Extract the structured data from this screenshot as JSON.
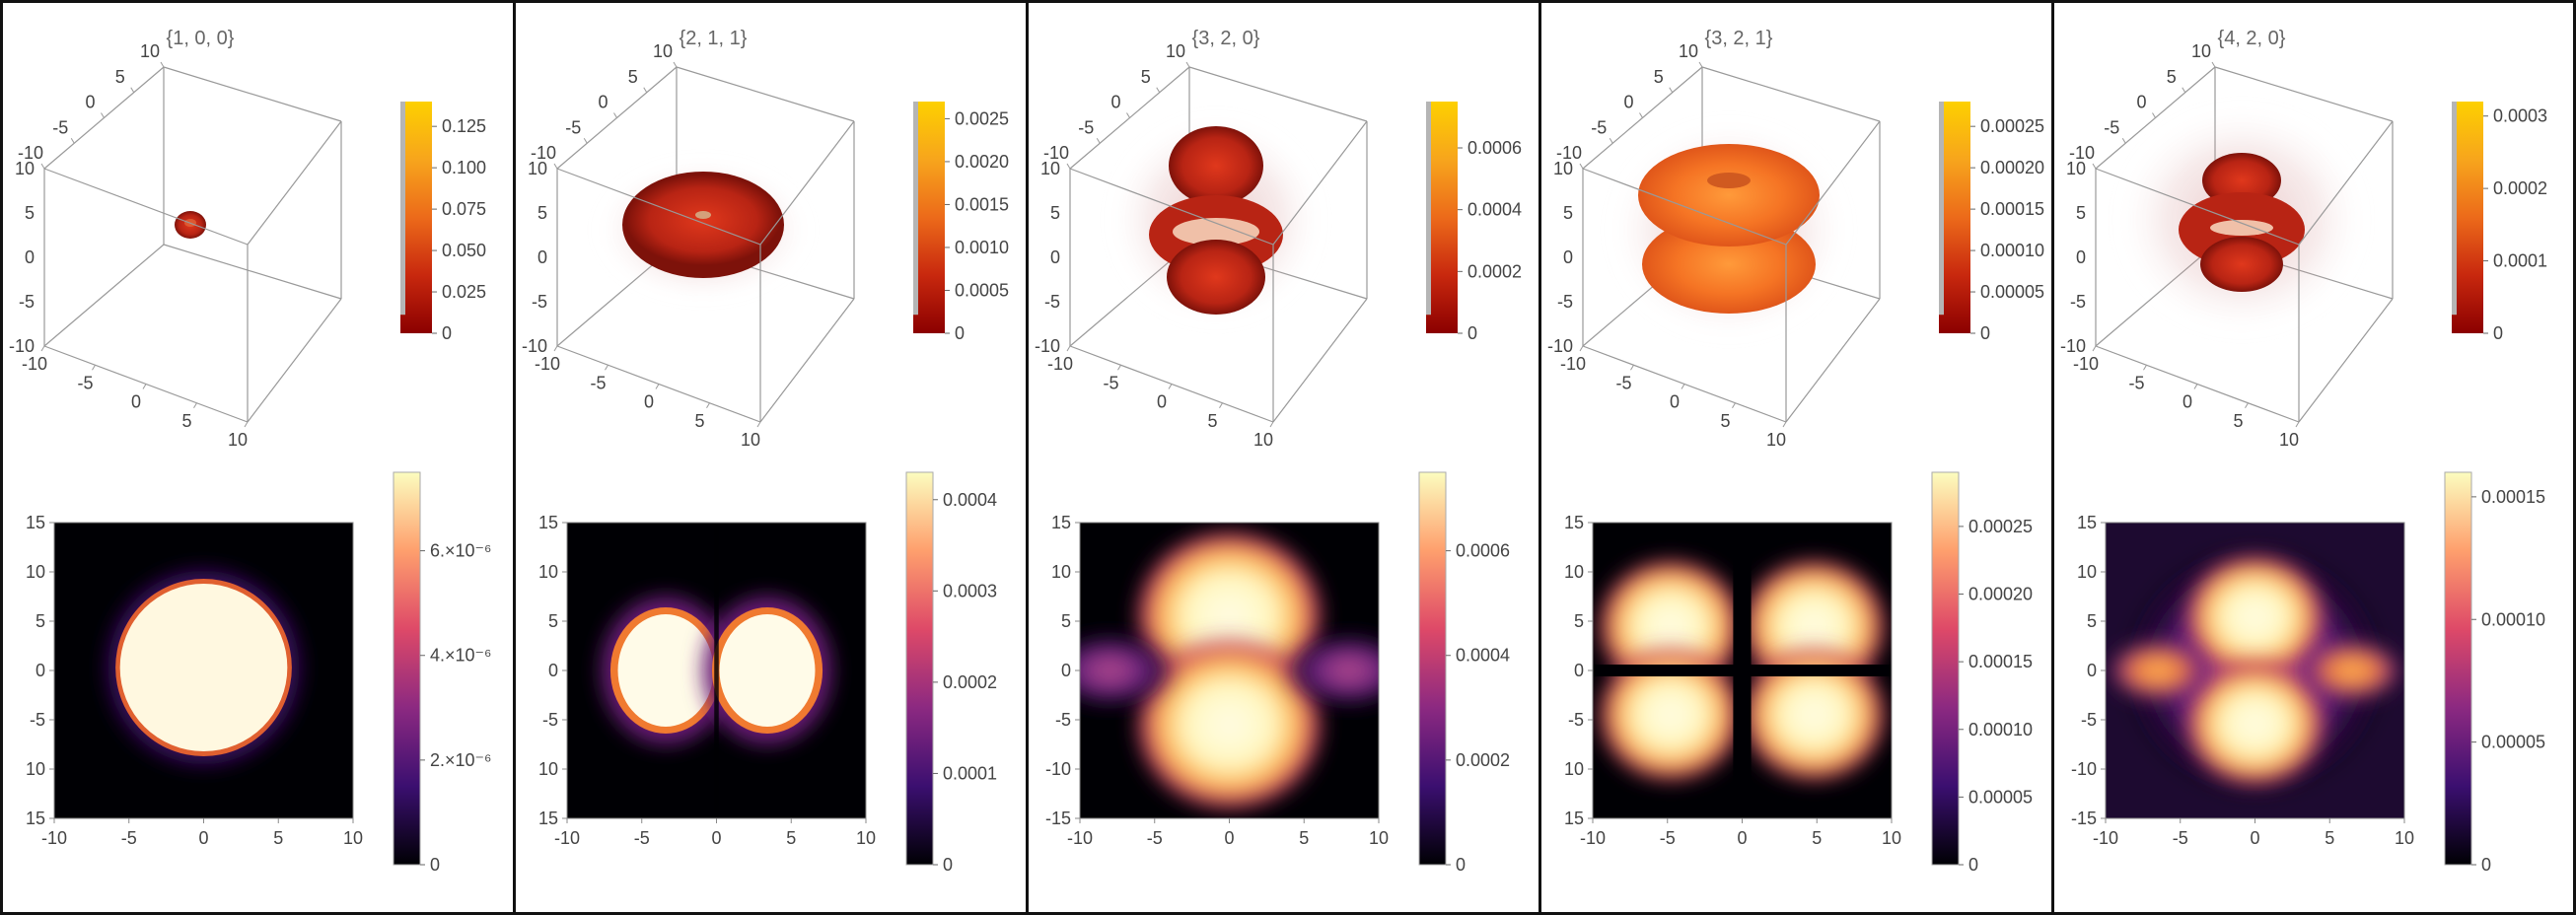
{
  "colors": {
    "border": "#111111",
    "axis": "#888888",
    "cube_edge": "#999999",
    "surface_dark": "#9c1a10",
    "surface_orange": "#e8561a",
    "colormap_3d": [
      "#8b0000",
      "#c8280e",
      "#ec6a1a",
      "#f7a51c",
      "#fdd000"
    ],
    "colormap_2d": [
      "#000004",
      "#3b0f70",
      "#8c2981",
      "#de4968",
      "#fe9f6d",
      "#fcfdbf"
    ]
  },
  "chart_data": [
    {
      "type": "heatmap",
      "title": "{1, 0, 0}",
      "view3d": {
        "axis_range": [
          -10,
          10
        ],
        "ticks_top": [
          "10",
          "5",
          "0",
          "-5",
          "-10"
        ],
        "ticks_left": [
          "10",
          "5",
          "0",
          "-5",
          "-10"
        ],
        "ticks_bottom": [
          "-10",
          "-5",
          "0",
          "5",
          "10"
        ],
        "colorbar_ticks": [
          "0.125",
          "0.100",
          "0.075",
          "0.050",
          "0.025",
          "0"
        ],
        "colorbar_range": [
          0,
          0.14
        ]
      },
      "density2d": {
        "xlim": [
          -10,
          10
        ],
        "ylim": [
          -15,
          15
        ],
        "x_ticks": [
          "-10",
          "-5",
          "0",
          "5",
          "10"
        ],
        "y_ticks": [
          "15",
          "10",
          "5",
          "0",
          "-5",
          "10",
          "15"
        ],
        "colorbar_ticks": [
          "6.×10⁻⁶",
          "4.×10⁻⁶",
          "2.×10⁻⁶",
          "0"
        ],
        "colorbar_range": [
          0,
          7.5e-06
        ]
      }
    },
    {
      "type": "heatmap",
      "title": "{2, 1, 1}",
      "view3d": {
        "axis_range": [
          -10,
          10
        ],
        "ticks_top": [
          "10",
          "5",
          "0",
          "-5",
          "-10"
        ],
        "ticks_left": [
          "10",
          "5",
          "0",
          "-5",
          "-10"
        ],
        "ticks_bottom": [
          "-10",
          "-5",
          "0",
          "5",
          "10"
        ],
        "colorbar_ticks": [
          "0.0025",
          "0.0020",
          "0.0015",
          "0.0010",
          "0.0005",
          "0"
        ],
        "colorbar_range": [
          0,
          0.0027
        ]
      },
      "density2d": {
        "xlim": [
          -10,
          10
        ],
        "ylim": [
          -15,
          15
        ],
        "x_ticks": [
          "-10",
          "-5",
          "0",
          "5",
          "10"
        ],
        "y_ticks": [
          "15",
          "10",
          "5",
          "0",
          "-5",
          "10",
          "15"
        ],
        "colorbar_ticks": [
          "0.0004",
          "0.0003",
          "0.0002",
          "0.0001",
          "0"
        ],
        "colorbar_range": [
          0,
          0.00043
        ]
      }
    },
    {
      "type": "heatmap",
      "title": "{3, 2, 0}",
      "view3d": {
        "axis_range": [
          -10,
          10
        ],
        "ticks_top": [
          "10",
          "5",
          "0",
          "-5",
          "-10"
        ],
        "ticks_left": [
          "10",
          "5",
          "0",
          "-5",
          "-10"
        ],
        "ticks_bottom": [
          "-10",
          "-5",
          "0",
          "5",
          "10"
        ],
        "colorbar_ticks": [
          "0.0006",
          "0.0004",
          "0.0002",
          "0"
        ],
        "colorbar_range": [
          0,
          0.00075
        ]
      },
      "density2d": {
        "xlim": [
          -10,
          10
        ],
        "ylim": [
          -15,
          15
        ],
        "x_ticks": [
          "-10",
          "-5",
          "0",
          "5",
          "10"
        ],
        "y_ticks": [
          "15",
          "10",
          "5",
          "0",
          "-5",
          "-10",
          "-15"
        ],
        "colorbar_ticks": [
          "0.0006",
          "0.0004",
          "0.0002",
          "0"
        ],
        "colorbar_range": [
          0,
          0.00075
        ]
      }
    },
    {
      "type": "heatmap",
      "title": "{3, 2, 1}",
      "view3d": {
        "axis_range": [
          -10,
          10
        ],
        "ticks_top": [
          "10",
          "5",
          "0",
          "-5",
          "-10"
        ],
        "ticks_left": [
          "10",
          "5",
          "0",
          "-5",
          "-10"
        ],
        "ticks_bottom": [
          "-10",
          "-5",
          "0",
          "5",
          "10"
        ],
        "colorbar_ticks": [
          "0.00025",
          "0.00020",
          "0.00015",
          "0.00010",
          "0.00005",
          "0"
        ],
        "colorbar_range": [
          0,
          0.00028
        ]
      },
      "density2d": {
        "xlim": [
          -10,
          10
        ],
        "ylim": [
          -15,
          15
        ],
        "x_ticks": [
          "-10",
          "-5",
          "0",
          "5",
          "10"
        ],
        "y_ticks": [
          "15",
          "10",
          "5",
          "0",
          "-5",
          "10",
          "15"
        ],
        "colorbar_ticks": [
          "0.00025",
          "0.00020",
          "0.00015",
          "0.00010",
          "0.00005",
          "0"
        ],
        "colorbar_range": [
          0,
          0.00029
        ]
      }
    },
    {
      "type": "heatmap",
      "title": "{4, 2, 0}",
      "view3d": {
        "axis_range": [
          -10,
          10
        ],
        "ticks_top": [
          "10",
          "5",
          "0",
          "-5",
          "-10"
        ],
        "ticks_left": [
          "10",
          "5",
          "0",
          "-5",
          "-10"
        ],
        "ticks_bottom": [
          "-10",
          "-5",
          "0",
          "5",
          "10"
        ],
        "colorbar_ticks": [
          "0.0003",
          "0.0002",
          "0.0001",
          "0"
        ],
        "colorbar_range": [
          0,
          0.00032
        ]
      },
      "density2d": {
        "xlim": [
          -10,
          10
        ],
        "ylim": [
          -15,
          15
        ],
        "x_ticks": [
          "-10",
          "-5",
          "0",
          "5",
          "10"
        ],
        "y_ticks": [
          "15",
          "10",
          "5",
          "0",
          "-5",
          "-10",
          "-15"
        ],
        "colorbar_ticks": [
          "0.00015",
          "0.00010",
          "0.00005",
          "0"
        ],
        "colorbar_range": [
          0,
          0.00016
        ]
      }
    }
  ]
}
